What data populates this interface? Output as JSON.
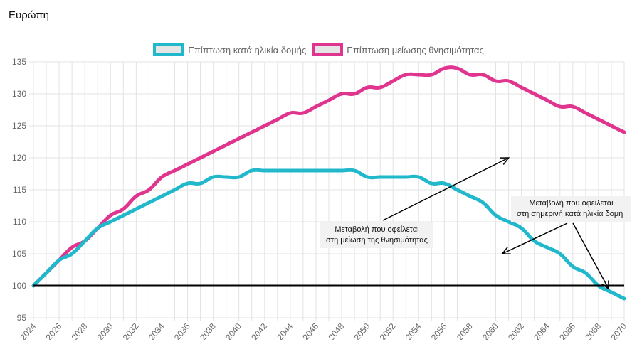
{
  "page": {
    "title": "Ευρώπη"
  },
  "chart_data": {
    "type": "line",
    "title": "Ευρώπη",
    "xlabel": "",
    "ylabel": "",
    "x": [
      2024,
      2025,
      2026,
      2027,
      2028,
      2029,
      2030,
      2031,
      2032,
      2033,
      2034,
      2035,
      2036,
      2037,
      2038,
      2039,
      2040,
      2041,
      2042,
      2043,
      2044,
      2045,
      2046,
      2047,
      2048,
      2049,
      2050,
      2051,
      2052,
      2053,
      2054,
      2055,
      2056,
      2057,
      2058,
      2059,
      2060,
      2061,
      2062,
      2063,
      2064,
      2065,
      2066,
      2067,
      2068,
      2069,
      2070
    ],
    "xticks": [
      "2024",
      "2026",
      "2028",
      "2030",
      "2032",
      "2034",
      "2036",
      "2038",
      "2040",
      "2042",
      "2044",
      "2046",
      "2048",
      "2050",
      "2052",
      "2054",
      "2056",
      "2058",
      "2060",
      "2062",
      "2064",
      "2066",
      "2068",
      "2070"
    ],
    "yticks": [
      "95",
      "100",
      "105",
      "110",
      "115",
      "120",
      "125",
      "130",
      "135"
    ],
    "xlim": [
      2024,
      2070
    ],
    "ylim": [
      95,
      135
    ],
    "grid": true,
    "legend_position": "top-center",
    "baseline": {
      "value": 100,
      "color": "#000000"
    },
    "series": [
      {
        "name": "Επίπτωση κατά ηλικία δομής",
        "color": "#22b8cc",
        "values": [
          100,
          102,
          104,
          105,
          107,
          109,
          110,
          111,
          112,
          113,
          114,
          115,
          116,
          116,
          117,
          117,
          117,
          118,
          118,
          118,
          118,
          118,
          118,
          118,
          118,
          118,
          117,
          117,
          117,
          117,
          117,
          116,
          116,
          115,
          114,
          113,
          111,
          110,
          109,
          107,
          106,
          105,
          103,
          102,
          100,
          99,
          98
        ]
      },
      {
        "name": "Επίπτωση μείωσης θνησιμότητας",
        "color": "#e0358f",
        "values": [
          100,
          102,
          104,
          106,
          107,
          109,
          111,
          112,
          114,
          115,
          117,
          118,
          119,
          120,
          121,
          122,
          123,
          124,
          125,
          126,
          127,
          127,
          128,
          129,
          130,
          130,
          131,
          131,
          132,
          133,
          133,
          133,
          134,
          134,
          133,
          133,
          132,
          132,
          131,
          130,
          129,
          128,
          128,
          127,
          126,
          125,
          124
        ]
      }
    ],
    "annotations": [
      {
        "lines": [
          "Μεταβολή που οφείλεται",
          "στη μείωση της θνησιμότητας"
        ],
        "arrows_to": [
          {
            "x": 2061,
            "y": 120
          },
          {
            "x": 2061,
            "y": 105
          }
        ]
      },
      {
        "lines": [
          "Μεταβολή που οφείλεται",
          "στη σημερινή κατά ηλικία δομή"
        ],
        "arrows_to": [
          {
            "x": 2068.8,
            "y": 99.5
          },
          {
            "x": 2060.5,
            "y": 105
          }
        ]
      }
    ]
  }
}
